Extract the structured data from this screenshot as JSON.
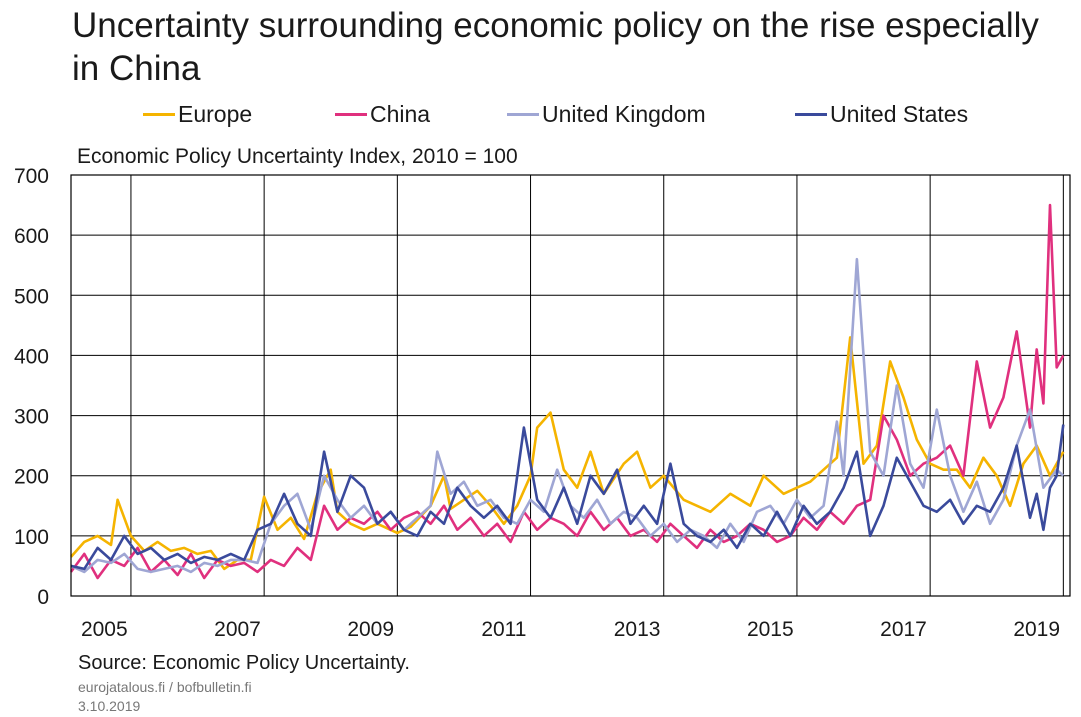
{
  "title": "Uncertainty surrounding economic policy on the rise especially in China",
  "subtitle": "Economic Policy Uncertainty Index, 2010 = 100",
  "source": "Source: Economic Policy Uncertainty.",
  "site": "eurojatalous.fi  / bofbulletin.fi",
  "date": "3.10.2019",
  "colors": {
    "europe": "#f5b400",
    "china": "#e0307e",
    "uk": "#9fa6d4",
    "us": "#3a4a9c",
    "grid": "#000000"
  },
  "legend": [
    {
      "name": "Europe",
      "color": "#f5b400"
    },
    {
      "name": "China",
      "color": "#e0307e"
    },
    {
      "name": "United Kingdom",
      "color": "#9fa6d4"
    },
    {
      "name": "United States",
      "color": "#3a4a9c"
    }
  ],
  "chart_data": {
    "type": "line",
    "ylabel": "Economic Policy Uncertainty Index, 2010 = 100",
    "ylim": [
      0,
      700
    ],
    "yticks": [
      0,
      100,
      200,
      300,
      400,
      500,
      600,
      700
    ],
    "xlim": [
      2004.6,
      2019.6
    ],
    "xticks": [
      2005,
      2007,
      2009,
      2011,
      2013,
      2015,
      2017,
      2019
    ],
    "xgrid": [
      2005.5,
      2007.5,
      2009.5,
      2011.5,
      2013.5,
      2015.5,
      2017.5,
      2019.5
    ],
    "grid": true,
    "legend_position": "top",
    "series": [
      {
        "name": "Europe",
        "color": "#f5b400",
        "x": [
          2004.6,
          2004.8,
          2005.0,
          2005.2,
          2005.3,
          2005.5,
          2005.7,
          2005.9,
          2006.1,
          2006.3,
          2006.5,
          2006.7,
          2006.9,
          2007.1,
          2007.3,
          2007.5,
          2007.7,
          2007.9,
          2008.1,
          2008.3,
          2008.5,
          2008.6,
          2008.8,
          2009.0,
          2009.2,
          2009.5,
          2009.7,
          2010.0,
          2010.2,
          2010.3,
          2010.5,
          2010.7,
          2010.9,
          2011.1,
          2011.3,
          2011.5,
          2011.6,
          2011.8,
          2012.0,
          2012.2,
          2012.4,
          2012.6,
          2012.9,
          2013.1,
          2013.3,
          2013.5,
          2013.8,
          2014.0,
          2014.2,
          2014.5,
          2014.8,
          2015.0,
          2015.3,
          2015.5,
          2015.7,
          2015.9,
          2016.1,
          2016.3,
          2016.5,
          2016.7,
          2016.9,
          2017.1,
          2017.3,
          2017.5,
          2017.7,
          2017.9,
          2018.1,
          2018.3,
          2018.5,
          2018.7,
          2018.9,
          2019.1,
          2019.3,
          2019.5
        ],
        "y": [
          65,
          90,
          100,
          85,
          160,
          100,
          75,
          90,
          75,
          80,
          70,
          75,
          45,
          60,
          60,
          165,
          110,
          130,
          95,
          170,
          210,
          140,
          120,
          110,
          120,
          105,
          115,
          150,
          200,
          145,
          160,
          175,
          150,
          120,
          150,
          200,
          280,
          305,
          210,
          180,
          240,
          170,
          220,
          240,
          180,
          200,
          160,
          150,
          140,
          170,
          150,
          200,
          170,
          180,
          190,
          210,
          230,
          430,
          220,
          250,
          390,
          330,
          260,
          220,
          210,
          210,
          180,
          230,
          200,
          150,
          220,
          250,
          200,
          240
        ]
      },
      {
        "name": "China",
        "color": "#e0307e",
        "x": [
          2004.6,
          2004.8,
          2005.0,
          2005.2,
          2005.4,
          2005.6,
          2005.8,
          2006.0,
          2006.2,
          2006.4,
          2006.6,
          2006.8,
          2007.0,
          2007.2,
          2007.4,
          2007.6,
          2007.8,
          2008.0,
          2008.2,
          2008.4,
          2008.6,
          2008.8,
          2009.0,
          2009.2,
          2009.4,
          2009.6,
          2009.8,
          2010.0,
          2010.2,
          2010.4,
          2010.6,
          2010.8,
          2011.0,
          2011.2,
          2011.4,
          2011.6,
          2011.8,
          2012.0,
          2012.2,
          2012.4,
          2012.6,
          2012.8,
          2013.0,
          2013.2,
          2013.4,
          2013.6,
          2013.8,
          2014.0,
          2014.2,
          2014.4,
          2014.6,
          2014.8,
          2015.0,
          2015.2,
          2015.4,
          2015.6,
          2015.8,
          2016.0,
          2016.2,
          2016.4,
          2016.6,
          2016.8,
          2017.0,
          2017.2,
          2017.4,
          2017.6,
          2017.8,
          2018.0,
          2018.2,
          2018.4,
          2018.6,
          2018.8,
          2019.0,
          2019.1,
          2019.2,
          2019.3,
          2019.4,
          2019.5
        ],
        "y": [
          40,
          70,
          30,
          60,
          50,
          80,
          40,
          60,
          35,
          70,
          30,
          60,
          50,
          55,
          40,
          60,
          50,
          80,
          60,
          150,
          110,
          130,
          120,
          140,
          110,
          130,
          140,
          120,
          150,
          110,
          130,
          100,
          120,
          90,
          140,
          110,
          130,
          120,
          100,
          140,
          110,
          130,
          100,
          110,
          90,
          120,
          100,
          80,
          110,
          90,
          100,
          120,
          110,
          90,
          100,
          130,
          110,
          140,
          120,
          150,
          160,
          300,
          260,
          200,
          220,
          230,
          250,
          200,
          390,
          280,
          330,
          440,
          280,
          410,
          320,
          650,
          380,
          400
        ]
      },
      {
        "name": "United Kingdom",
        "color": "#9fa6d4",
        "x": [
          2004.6,
          2004.8,
          2005.0,
          2005.2,
          2005.4,
          2005.6,
          2005.8,
          2006.0,
          2006.2,
          2006.4,
          2006.6,
          2006.8,
          2007.0,
          2007.2,
          2007.4,
          2007.6,
          2007.8,
          2008.0,
          2008.2,
          2008.4,
          2008.6,
          2008.8,
          2009.0,
          2009.2,
          2009.4,
          2009.6,
          2009.8,
          2010.0,
          2010.1,
          2010.3,
          2010.5,
          2010.7,
          2010.9,
          2011.1,
          2011.3,
          2011.5,
          2011.7,
          2011.9,
          2012.1,
          2012.3,
          2012.5,
          2012.7,
          2012.9,
          2013.1,
          2013.3,
          2013.5,
          2013.7,
          2013.9,
          2014.1,
          2014.3,
          2014.5,
          2014.7,
          2014.9,
          2015.1,
          2015.3,
          2015.5,
          2015.7,
          2015.9,
          2016.1,
          2016.2,
          2016.4,
          2016.6,
          2016.8,
          2017.0,
          2017.2,
          2017.4,
          2017.6,
          2017.8,
          2018.0,
          2018.2,
          2018.4,
          2018.6,
          2018.8,
          2019.0,
          2019.2,
          2019.4,
          2019.5
        ],
        "y": [
          50,
          40,
          60,
          55,
          70,
          45,
          40,
          45,
          50,
          40,
          55,
          50,
          60,
          60,
          55,
          120,
          150,
          170,
          110,
          200,
          160,
          130,
          150,
          120,
          140,
          110,
          130,
          150,
          240,
          170,
          190,
          150,
          160,
          130,
          120,
          160,
          140,
          210,
          150,
          130,
          160,
          120,
          140,
          130,
          100,
          120,
          90,
          110,
          100,
          80,
          120,
          90,
          140,
          150,
          120,
          160,
          130,
          150,
          290,
          200,
          560,
          240,
          200,
          350,
          220,
          180,
          310,
          200,
          140,
          190,
          120,
          160,
          250,
          310,
          180,
          210,
          200
        ]
      },
      {
        "name": "United States",
        "color": "#3a4a9c",
        "x": [
          2004.6,
          2004.8,
          2005.0,
          2005.2,
          2005.4,
          2005.6,
          2005.8,
          2006.0,
          2006.2,
          2006.4,
          2006.6,
          2006.8,
          2007.0,
          2007.2,
          2007.4,
          2007.6,
          2007.8,
          2008.0,
          2008.2,
          2008.4,
          2008.6,
          2008.8,
          2009.0,
          2009.2,
          2009.4,
          2009.6,
          2009.8,
          2010.0,
          2010.2,
          2010.4,
          2010.6,
          2010.8,
          2011.0,
          2011.2,
          2011.4,
          2011.6,
          2011.8,
          2012.0,
          2012.2,
          2012.4,
          2012.6,
          2012.8,
          2013.0,
          2013.2,
          2013.4,
          2013.6,
          2013.8,
          2014.0,
          2014.2,
          2014.4,
          2014.6,
          2014.8,
          2015.0,
          2015.2,
          2015.4,
          2015.6,
          2015.8,
          2016.0,
          2016.2,
          2016.4,
          2016.6,
          2016.8,
          2017.0,
          2017.2,
          2017.4,
          2017.6,
          2017.8,
          2018.0,
          2018.2,
          2018.4,
          2018.6,
          2018.8,
          2019.0,
          2019.1,
          2019.2,
          2019.3,
          2019.4,
          2019.5
        ],
        "y": [
          50,
          45,
          80,
          60,
          100,
          70,
          80,
          60,
          70,
          55,
          65,
          60,
          70,
          60,
          110,
          120,
          170,
          120,
          100,
          240,
          140,
          200,
          180,
          120,
          140,
          110,
          100,
          140,
          120,
          180,
          150,
          130,
          150,
          120,
          280,
          160,
          130,
          180,
          120,
          200,
          170,
          210,
          120,
          150,
          120,
          220,
          120,
          100,
          90,
          110,
          80,
          120,
          100,
          140,
          100,
          150,
          120,
          140,
          180,
          240,
          100,
          150,
          230,
          190,
          150,
          140,
          160,
          120,
          150,
          140,
          180,
          250,
          130,
          170,
          110,
          180,
          200,
          285
        ]
      }
    ]
  }
}
